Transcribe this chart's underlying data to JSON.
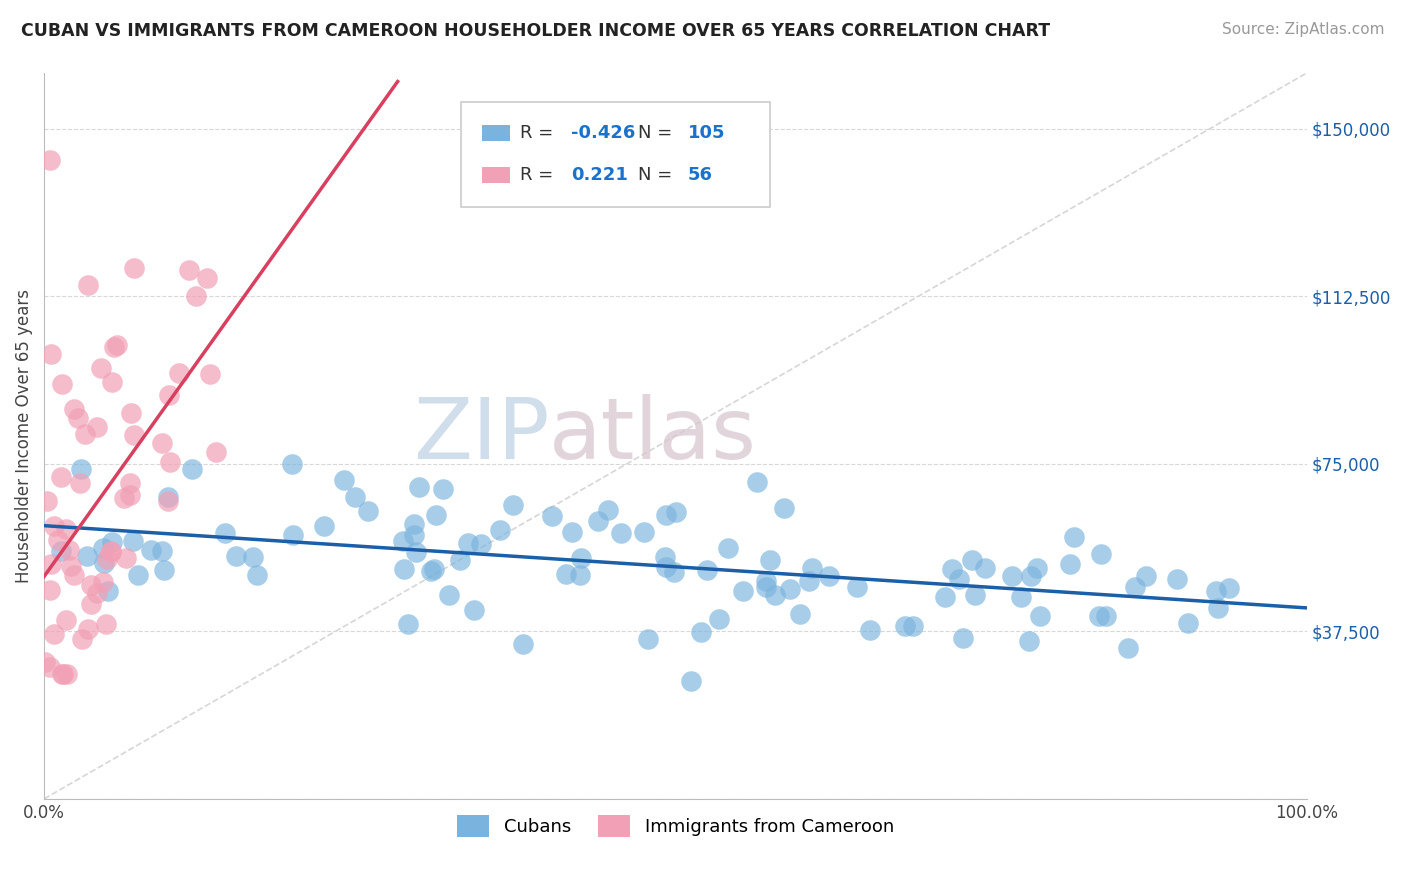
{
  "title": "CUBAN VS IMMIGRANTS FROM CAMEROON HOUSEHOLDER INCOME OVER 65 YEARS CORRELATION CHART",
  "source": "Source: ZipAtlas.com",
  "ylabel": "Householder Income Over 65 years",
  "xlim": [
    0.0,
    1.0
  ],
  "ylim": [
    0,
    162500
  ],
  "yticks": [
    0,
    37500,
    75000,
    112500,
    150000
  ],
  "ytick_labels": [
    "",
    "$37,500",
    "$75,000",
    "$112,500",
    "$150,000"
  ],
  "background_color": "#ffffff",
  "grid_color": "#d8d8d8",
  "watermark_zip": "ZIP",
  "watermark_atlas": "atlas",
  "blue_color": "#7ab3de",
  "pink_color": "#f2a0b5",
  "blue_line_color": "#1a5fa8",
  "pink_line_color": "#d94060",
  "legend_R_blue": "-0.426",
  "legend_N_blue": "105",
  "legend_R_pink": "0.221",
  "legend_N_pink": "56",
  "legend_color_blue": "#1a72cc",
  "legend_color_pink": "#1a72cc",
  "cubans_label": "Cubans",
  "cameroon_label": "Immigrants from Cameroon",
  "blue_scatter_seed": 10,
  "pink_scatter_seed": 20,
  "title_fontsize": 12.5,
  "source_fontsize": 11,
  "tick_fontsize": 12,
  "legend_fontsize": 13
}
